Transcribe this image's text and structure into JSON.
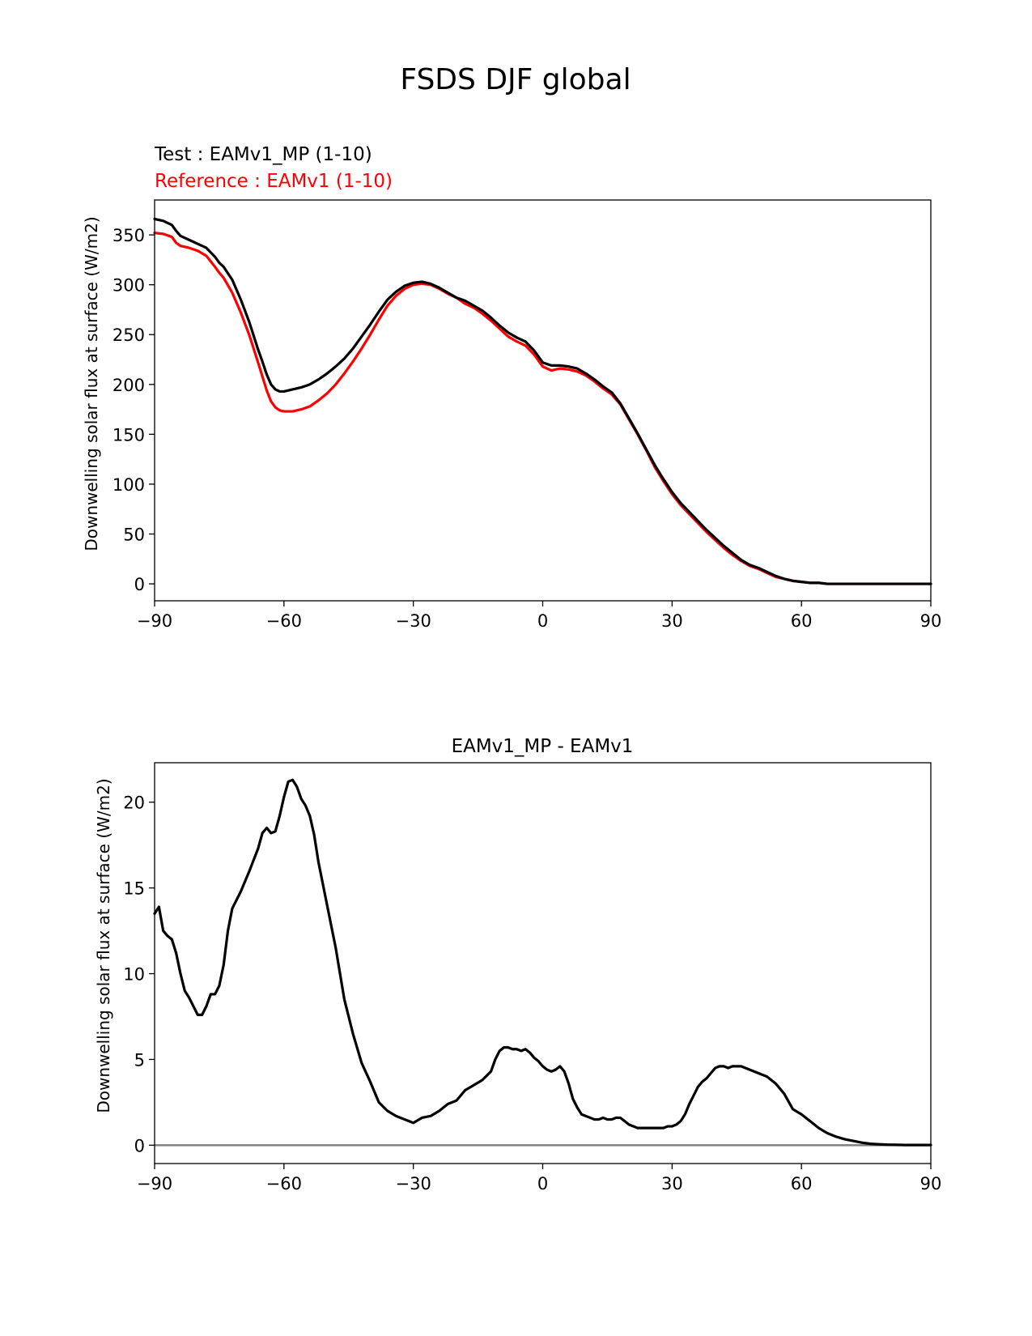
{
  "figure": {
    "title": "FSDS DJF global"
  },
  "chart_data": [
    {
      "type": "line",
      "subtitle_test": "Test : EAMv1_MP (1-10)",
      "subtitle_reference": "Reference : EAMv1 (1-10)",
      "xlabel": "",
      "ylabel": "Downwelling solar flux at surface (W/m2)",
      "xlim": [
        -90,
        90
      ],
      "ylim": [
        -17,
        385
      ],
      "xticks": [
        -90,
        -60,
        -30,
        0,
        30,
        60,
        90
      ],
      "xtick_labels": [
        "−90",
        "−60",
        "−30",
        "0",
        "30",
        "60",
        "90"
      ],
      "yticks": [
        0,
        50,
        100,
        150,
        200,
        250,
        300,
        350
      ],
      "ytick_labels": [
        "0",
        "50",
        "100",
        "150",
        "200",
        "250",
        "300",
        "350"
      ],
      "series": [
        {
          "name": "EAMv1_MP (1-10)",
          "role": "test",
          "color": "#000000",
          "x": [
            -90,
            -88,
            -86,
            -85,
            -84,
            -83,
            -82,
            -80,
            -78,
            -76,
            -75,
            -74,
            -72,
            -70,
            -68,
            -66,
            -65,
            -64,
            -63,
            -62,
            -61,
            -60,
            -58,
            -56,
            -54,
            -52,
            -50,
            -48,
            -46,
            -44,
            -42,
            -40,
            -38,
            -36,
            -34,
            -32,
            -30,
            -28,
            -26,
            -24,
            -22,
            -20,
            -18,
            -16,
            -14,
            -12,
            -10,
            -8,
            -6,
            -4,
            -2,
            0,
            2,
            4,
            6,
            8,
            10,
            12,
            14,
            16,
            18,
            20,
            22,
            24,
            26,
            28,
            30,
            32,
            34,
            36,
            38,
            40,
            42,
            44,
            46,
            48,
            50,
            52,
            54,
            56,
            58,
            60,
            62,
            64,
            66,
            68,
            70,
            72,
            74,
            76,
            78,
            80,
            82,
            84,
            86,
            88,
            90
          ],
          "values": [
            366,
            364,
            360,
            354,
            349,
            347,
            345,
            341,
            337,
            328,
            322,
            318,
            305,
            285,
            262,
            235,
            223,
            210,
            200,
            195,
            193,
            193,
            195,
            197,
            200,
            205,
            211,
            218,
            226,
            236,
            248,
            260,
            273,
            285,
            293,
            299,
            302,
            303,
            301,
            297,
            292,
            287,
            284,
            279,
            274,
            267,
            259,
            252,
            247,
            243,
            234,
            222,
            219,
            219,
            218,
            216,
            211,
            205,
            198,
            192,
            181,
            166,
            151,
            135,
            119,
            105,
            92,
            81,
            72,
            63,
            54,
            46,
            38,
            31,
            24,
            19,
            16,
            12,
            8,
            5,
            3,
            2,
            1,
            1,
            0,
            0,
            0,
            0,
            0,
            0,
            0,
            0,
            0,
            0,
            0,
            0,
            0
          ]
        },
        {
          "name": "EAMv1 (1-10)",
          "role": "reference",
          "color": "#ff0000",
          "x": [
            -90,
            -88,
            -86,
            -85,
            -84,
            -83,
            -82,
            -80,
            -78,
            -76,
            -75,
            -74,
            -72,
            -70,
            -68,
            -66,
            -65,
            -64,
            -63,
            -62,
            -61,
            -60,
            -58,
            -56,
            -54,
            -52,
            -50,
            -48,
            -46,
            -44,
            -42,
            -40,
            -38,
            -36,
            -34,
            -32,
            -30,
            -28,
            -26,
            -24,
            -22,
            -20,
            -18,
            -16,
            -14,
            -12,
            -10,
            -8,
            -6,
            -4,
            -2,
            0,
            2,
            4,
            6,
            8,
            10,
            12,
            14,
            16,
            18,
            20,
            22,
            24,
            26,
            28,
            30,
            32,
            34,
            36,
            38,
            40,
            42,
            44,
            46,
            48,
            50,
            52,
            54,
            56,
            58,
            60,
            62,
            64,
            66,
            68,
            70,
            72,
            74,
            76,
            78,
            80,
            82,
            84,
            86,
            88,
            90
          ],
          "values": [
            352,
            351,
            348,
            342,
            339,
            338,
            337,
            334,
            329,
            318,
            312,
            307,
            292,
            272,
            249,
            222,
            208,
            194,
            183,
            177,
            174,
            173,
            173,
            175,
            178,
            184,
            191,
            200,
            211,
            223,
            236,
            250,
            265,
            279,
            289,
            296,
            300,
            301,
            300,
            296,
            291,
            287,
            281,
            277,
            271,
            264,
            256,
            248,
            243,
            239,
            230,
            218,
            214,
            216,
            215,
            213,
            209,
            203,
            196,
            190,
            180,
            165,
            150,
            134,
            117,
            103,
            90,
            79,
            70,
            61,
            52,
            44,
            36,
            29,
            23,
            18,
            15,
            11,
            7,
            5,
            3,
            2,
            1,
            1,
            0,
            0,
            0,
            0,
            0,
            0,
            0,
            0,
            0,
            0,
            0,
            0,
            0
          ]
        }
      ]
    },
    {
      "type": "line",
      "title": "EAMv1_MP - EAMv1",
      "xlabel": "",
      "ylabel": "Downwelling solar flux at surface (W/m2)",
      "xlim": [
        -90,
        90
      ],
      "ylim": [
        -1.07,
        22.3
      ],
      "xticks": [
        -90,
        -60,
        -30,
        0,
        30,
        60,
        90
      ],
      "xtick_labels": [
        "−90",
        "−60",
        "−30",
        "0",
        "30",
        "60",
        "90"
      ],
      "yticks": [
        0,
        5,
        10,
        15,
        20
      ],
      "ytick_labels": [
        "0",
        "5",
        "10",
        "15",
        "20"
      ],
      "zero_line_color": "#808080",
      "series": [
        {
          "name": "EAMv1_MP - EAMv1",
          "color": "#000000",
          "x": [
            -90,
            -89,
            -88,
            -87,
            -86,
            -85,
            -84,
            -83,
            -82,
            -81,
            -80,
            -79,
            -78,
            -77,
            -76,
            -75,
            -74,
            -73,
            -72,
            -70,
            -68,
            -66,
            -65,
            -64,
            -63,
            -62,
            -61,
            -60,
            -59,
            -58,
            -57,
            -56,
            -55,
            -54,
            -53,
            -52,
            -50,
            -48,
            -46,
            -44,
            -42,
            -40,
            -38,
            -36,
            -34,
            -32,
            -30,
            -28,
            -26,
            -24,
            -22,
            -20,
            -18,
            -16,
            -14,
            -12,
            -11,
            -10,
            -9,
            -8,
            -7,
            -6,
            -5,
            -4,
            -3,
            -2,
            -1,
            0,
            1,
            2,
            3,
            4,
            5,
            6,
            7,
            8,
            9,
            10,
            11,
            12,
            13,
            14,
            15,
            16,
            17,
            18,
            19,
            20,
            21,
            22,
            23,
            24,
            25,
            26,
            27,
            28,
            29,
            30,
            31,
            32,
            33,
            34,
            35,
            36,
            37,
            38,
            39,
            40,
            41,
            42,
            43,
            44,
            45,
            46,
            47,
            48,
            49,
            50,
            51,
            52,
            53,
            54,
            56,
            58,
            60,
            62,
            64,
            66,
            68,
            70,
            72,
            74,
            76,
            78,
            80,
            82,
            84,
            86,
            88,
            90
          ],
          "values": [
            13.5,
            13.9,
            12.5,
            12.2,
            12.0,
            11.2,
            10.0,
            9.0,
            8.6,
            8.1,
            7.6,
            7.6,
            8.1,
            8.8,
            8.8,
            9.3,
            10.5,
            12.5,
            13.8,
            14.8,
            16.0,
            17.3,
            18.2,
            18.5,
            18.2,
            18.3,
            19.2,
            20.3,
            21.2,
            21.3,
            20.9,
            20.2,
            19.8,
            19.2,
            18.1,
            16.5,
            14.0,
            11.5,
            8.5,
            6.5,
            4.8,
            3.7,
            2.5,
            2.0,
            1.7,
            1.5,
            1.3,
            1.6,
            1.7,
            2.0,
            2.4,
            2.6,
            3.2,
            3.5,
            3.8,
            4.3,
            5.0,
            5.5,
            5.7,
            5.7,
            5.6,
            5.6,
            5.5,
            5.6,
            5.4,
            5.1,
            4.9,
            4.6,
            4.4,
            4.3,
            4.4,
            4.6,
            4.3,
            3.6,
            2.7,
            2.2,
            1.8,
            1.7,
            1.6,
            1.5,
            1.5,
            1.6,
            1.5,
            1.5,
            1.6,
            1.6,
            1.4,
            1.2,
            1.1,
            1.0,
            1.0,
            1.0,
            1.0,
            1.0,
            1.0,
            1.0,
            1.1,
            1.1,
            1.2,
            1.4,
            1.8,
            2.4,
            2.9,
            3.4,
            3.7,
            3.9,
            4.2,
            4.5,
            4.6,
            4.6,
            4.5,
            4.6,
            4.6,
            4.6,
            4.5,
            4.4,
            4.3,
            4.2,
            4.1,
            4.0,
            3.8,
            3.6,
            3.0,
            2.1,
            1.8,
            1.4,
            1.0,
            0.7,
            0.5,
            0.35,
            0.25,
            0.15,
            0.08,
            0.05,
            0.03,
            0.02,
            0.01,
            0.01,
            0.01,
            0.01
          ]
        }
      ]
    }
  ]
}
